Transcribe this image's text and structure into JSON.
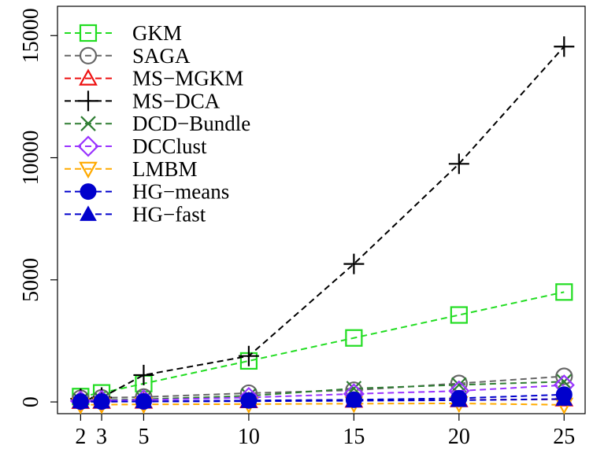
{
  "chart_data": {
    "type": "line",
    "title": "",
    "xlabel": "",
    "ylabel": "",
    "x": [
      2,
      3,
      5,
      10,
      15,
      20,
      25
    ],
    "x_ticks": [
      "2",
      "3",
      "5",
      "10",
      "15",
      "20",
      "25"
    ],
    "y_ticks": [
      "0",
      "5000",
      "10000",
      "15000"
    ],
    "xlim": [
      0.9,
      26.0
    ],
    "ylim": [
      -480,
      16200
    ],
    "grid": false,
    "legend_position": "top-left",
    "series": [
      {
        "name": "GKM",
        "color": "#22dd22",
        "marker": "square-open",
        "values": [
          220,
          370,
          750,
          1680,
          2620,
          3560,
          4500
        ]
      },
      {
        "name": "SAGA",
        "color": "#666666",
        "marker": "circle-open",
        "values": [
          150,
          170,
          200,
          360,
          480,
          760,
          1050
        ]
      },
      {
        "name": "MS−MGKM",
        "color": "#ee1111",
        "marker": "triangle-up-open",
        "values": [
          10,
          15,
          20,
          40,
          60,
          80,
          110
        ]
      },
      {
        "name": "MS−DCA",
        "color": "#000000",
        "marker": "plus",
        "values": [
          130,
          180,
          1100,
          1880,
          5650,
          9750,
          14550
        ]
      },
      {
        "name": "DCD−Bundle",
        "color": "#2e7d32",
        "marker": "x",
        "values": [
          60,
          80,
          110,
          250,
          550,
          700,
          830
        ]
      },
      {
        "name": "DCClust",
        "color": "#9933ff",
        "marker": "diamond-open",
        "values": [
          40,
          60,
          80,
          180,
          330,
          450,
          690
        ]
      },
      {
        "name": "LMBM",
        "color": "#ffaa00",
        "marker": "triangle-down-open",
        "values": [
          -120,
          -110,
          -100,
          -90,
          -70,
          -60,
          -120
        ]
      },
      {
        "name": "HG−means",
        "color": "#0000cc",
        "marker": "circle-filled",
        "values": [
          15,
          18,
          22,
          60,
          90,
          150,
          300
        ]
      },
      {
        "name": "HG−fast",
        "color": "#0000cc",
        "marker": "triangle-up-filled",
        "values": [
          10,
          12,
          15,
          30,
          50,
          70,
          120
        ]
      }
    ]
  }
}
